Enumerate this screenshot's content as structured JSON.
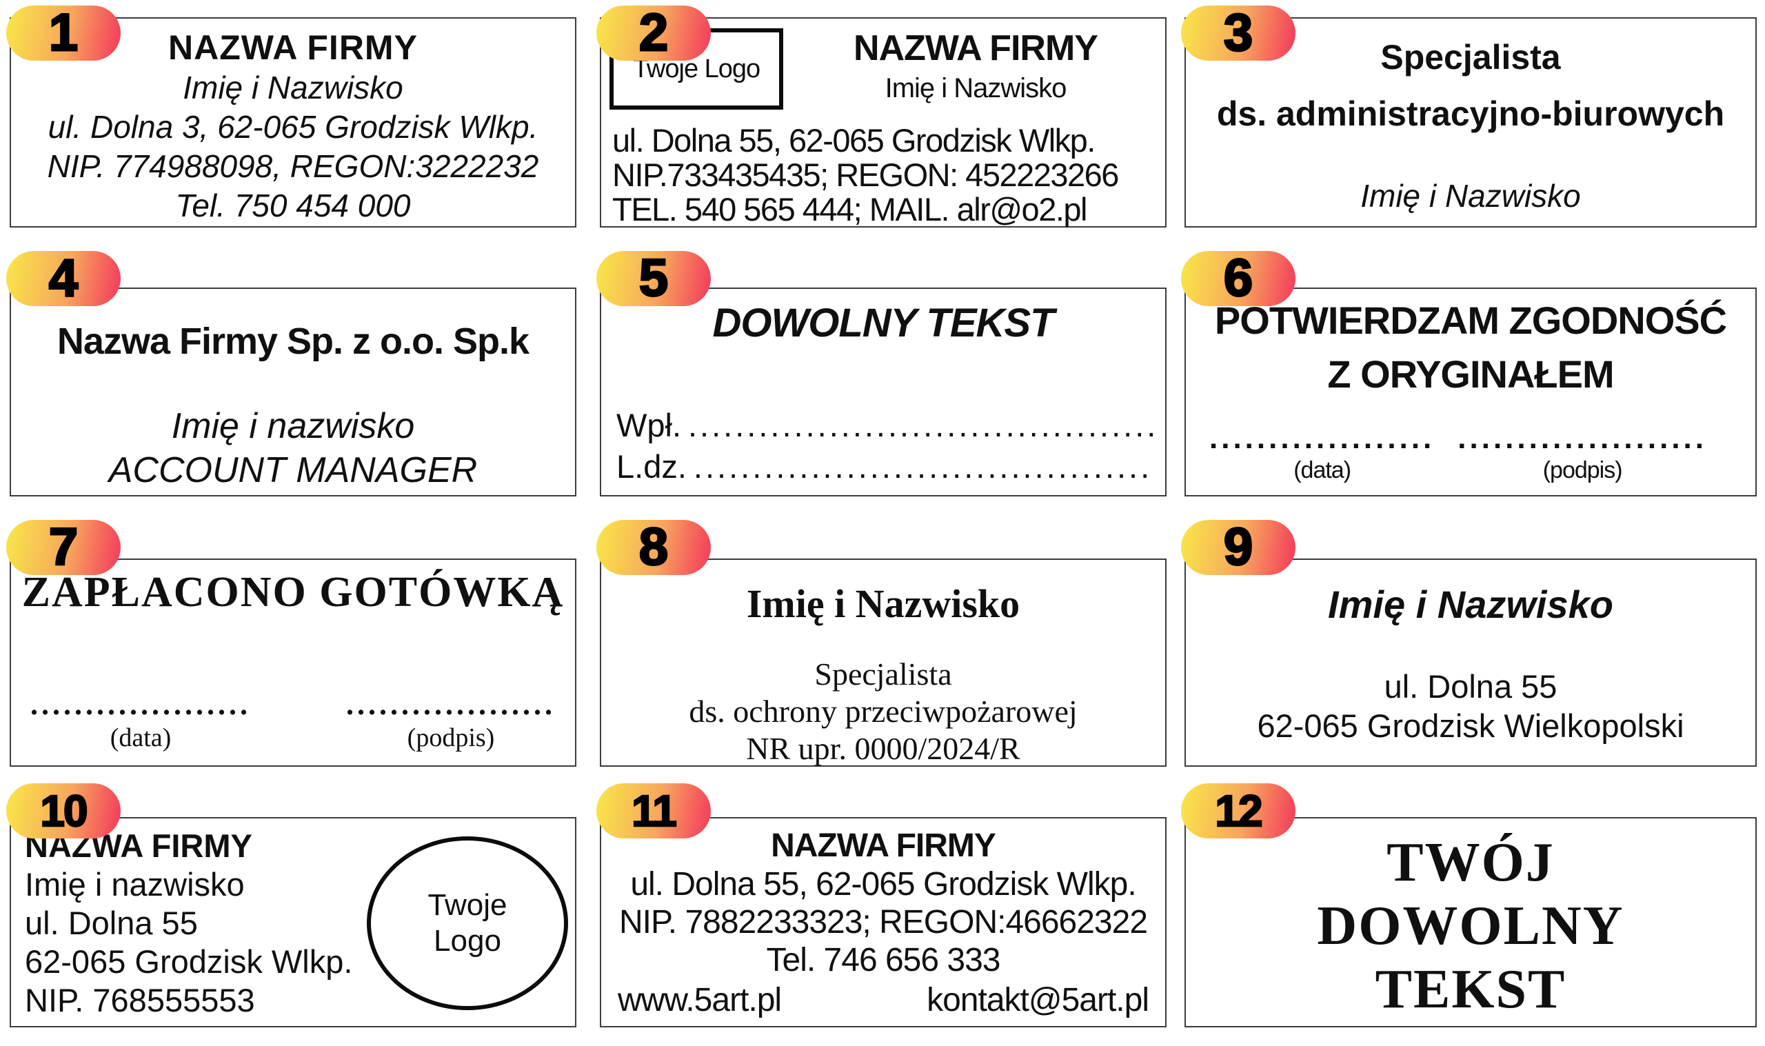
{
  "page": {
    "background": "#ffffff",
    "box_border_color": "#3d3d3d"
  },
  "badge": {
    "gradient_from": "#F8E14A",
    "gradient_mid": "#F7A55D",
    "gradient_to": "#F4455C",
    "number_color": "#000000"
  },
  "stamps": [
    {
      "number": "1",
      "title": "NAZWA FIRMY",
      "name": "Imię i Nazwisko",
      "address": "ul. Dolna 3, 62-065 Grodzisk Wlkp.",
      "ids": "NIP. 774988098, REGON:3222232",
      "phone": "Tel. 750 454 000"
    },
    {
      "number": "2",
      "logo": "Twoje Logo",
      "title": "NAZWA FIRMY",
      "name": "Imię i Nazwisko",
      "address": "ul. Dolna 55, 62-065  Grodzisk Wlkp.",
      "ids": "NIP.733435435; REGON: 452223266",
      "contact": "TEL. 540 565 444; MAIL. alr@o2.pl"
    },
    {
      "number": "3",
      "title": "Specjalista",
      "subtitle": "ds. administracyjno-biurowych",
      "name": "Imię i Nazwisko"
    },
    {
      "number": "4",
      "title": "Nazwa Firmy Sp. z o.o. Sp.k",
      "name": "Imię i nazwisko",
      "role": "ACCOUNT MANAGER"
    },
    {
      "number": "5",
      "title": "DOWOLNY TEKST",
      "row1_label": "Wpł.",
      "row1_dots": "........................................",
      "row2_label": "L.dz.",
      "row2_dots": "........................................"
    },
    {
      "number": "6",
      "title": "POTWIERDZAM ZGODNOŚĆ",
      "subtitle": "Z ORYGINAŁEM",
      "dots_left": "...................",
      "dots_right": ".....................",
      "caption_left": "(data)",
      "caption_right": "(podpis)"
    },
    {
      "number": "7",
      "title": "ZAPŁACONO GOTÓWKĄ",
      "dots_left": "....................",
      "dots_right": "...................",
      "caption_left": "(data)",
      "caption_right": "(podpis)"
    },
    {
      "number": "8",
      "name": "Imię i Nazwisko",
      "title": "Specjalista",
      "subtitle": "ds. ochrony przeciwpożarowej",
      "license": "NR upr. 0000/2024/R"
    },
    {
      "number": "9",
      "name": "Imię i Nazwisko",
      "address1": "ul. Dolna 55",
      "address2": "62-065 Grodzisk Wielkopolski"
    },
    {
      "number": "10",
      "title": "NAZWA FIRMY",
      "name": "Imię i nazwisko",
      "address1": "ul. Dolna 55",
      "address2": "62-065 Grodzisk Wlkp.",
      "ids": "NIP. 768555553",
      "logo_line1": "Twoje",
      "logo_line2": "Logo"
    },
    {
      "number": "11",
      "title": "NAZWA FIRMY",
      "address": "ul. Dolna 55, 62-065 Grodzisk Wlkp.",
      "ids": "NIP. 7882233323; REGON:46662322",
      "phone": "Tel. 746 656 333",
      "website": "www.5art.pl",
      "email": "kontakt@5art.pl"
    },
    {
      "number": "12",
      "line1": "TWÓJ",
      "line2": "DOWOLNY",
      "line3": "TEKST"
    }
  ]
}
